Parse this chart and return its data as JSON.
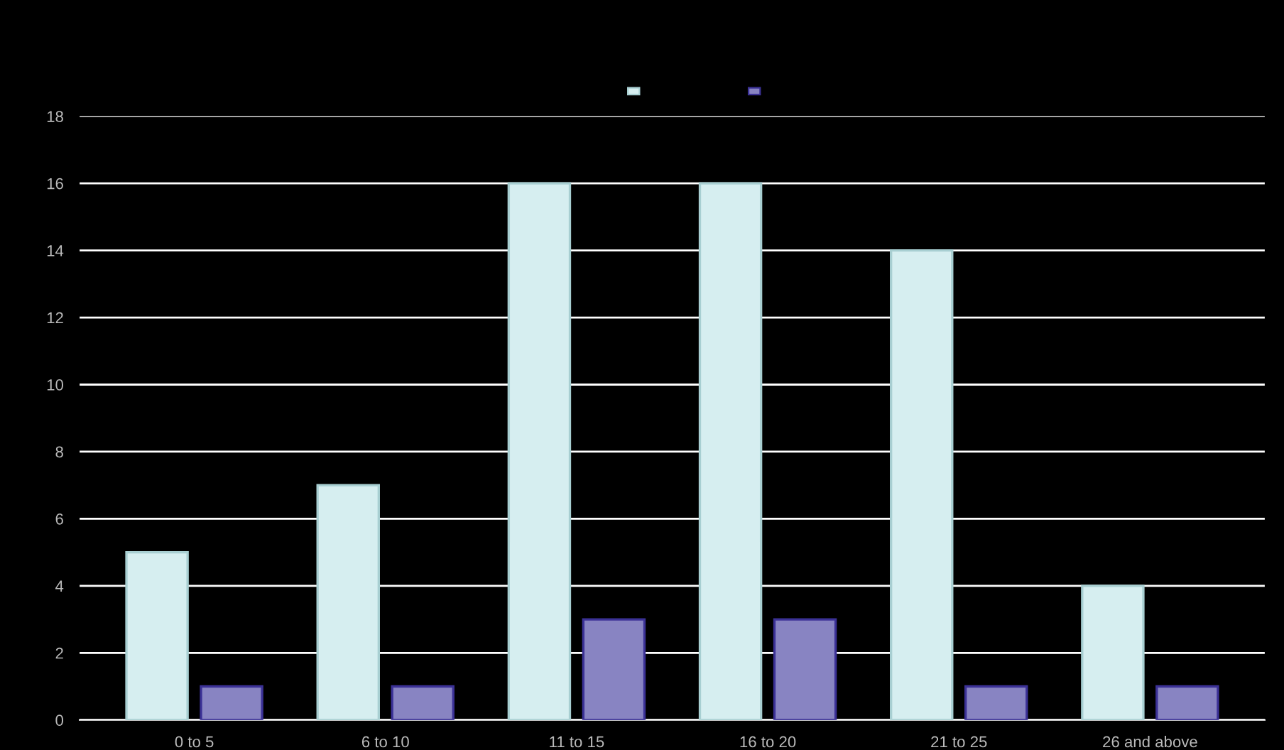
{
  "chart_data": {
    "type": "bar",
    "categories": [
      "0 to 5",
      "6 to 10",
      "11 to 15",
      "16 to 20",
      "21 to 25",
      "26 and above"
    ],
    "series": [
      {
        "color": "#d6eef0",
        "values": [
          5,
          7,
          16,
          16,
          14,
          4
        ]
      },
      {
        "color": "#8884c2",
        "values": [
          1,
          1,
          3,
          3,
          1,
          1
        ]
      }
    ],
    "ylim": [
      0,
      18
    ],
    "yticks": [
      0,
      2,
      4,
      6,
      8,
      10,
      12,
      14,
      16,
      18
    ],
    "grid": "y"
  }
}
